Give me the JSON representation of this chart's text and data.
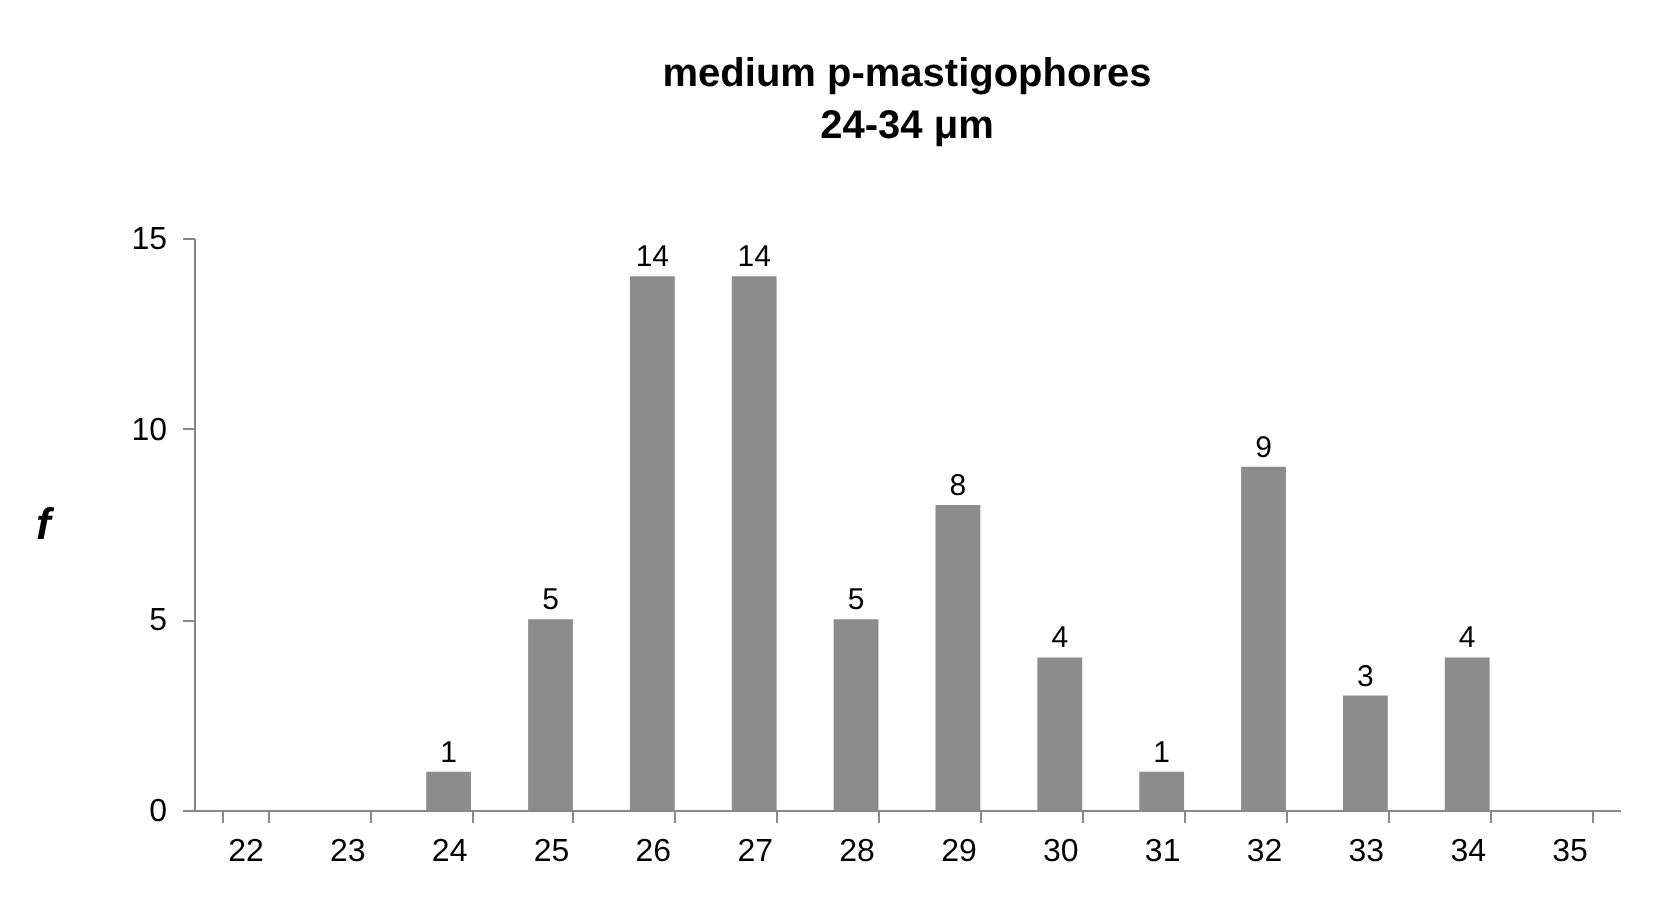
{
  "chart_data": {
    "type": "bar",
    "title": "medium p-mastigophores",
    "subtitle": "24-34 μm",
    "ylabel": "f",
    "categories": [
      "22",
      "23",
      "24",
      "25",
      "26",
      "27",
      "28",
      "29",
      "30",
      "31",
      "32",
      "33",
      "34",
      "35"
    ],
    "series": [
      {
        "color": "#8c8c8c",
        "values": [
          0,
          0,
          1,
          5,
          14,
          14,
          5,
          8,
          4,
          1,
          9,
          3,
          4,
          0
        ],
        "value_labels": [
          null,
          null,
          "1",
          "5",
          "14",
          "14",
          "5",
          "8",
          "4",
          "1",
          "9",
          "3",
          "4",
          null
        ]
      }
    ],
    "ylim": [
      0,
      15
    ],
    "yticks": [
      0,
      5,
      10,
      15
    ],
    "grid": false
  }
}
